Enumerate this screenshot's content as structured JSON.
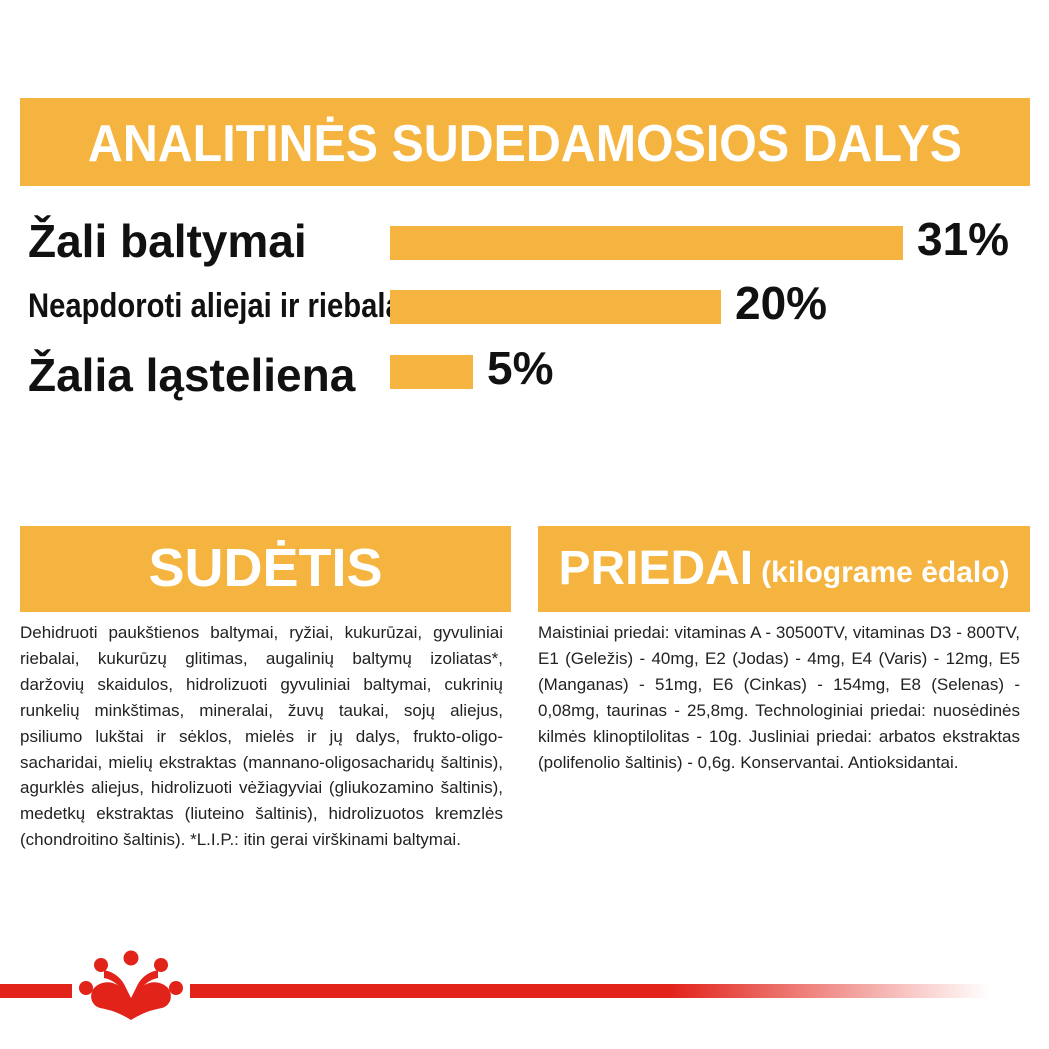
{
  "analytic": {
    "title": "ANALITINĖS SUDEDAMOSIOS DALYS"
  },
  "chart_data": {
    "type": "bar",
    "orientation": "horizontal",
    "categories": [
      "Žali baltymai",
      "Neapdoroti aliejai ir riebalai",
      "Žalia ląsteliena"
    ],
    "values": [
      31,
      20,
      5
    ],
    "value_labels": [
      "31%",
      "20%",
      "5%"
    ],
    "unit": "%",
    "xlim": [
      0,
      31
    ],
    "color": "#f5b43f",
    "grid": false
  },
  "sudetis": {
    "title": "SUDĖTIS",
    "text": "Dehidruoti paukštienos baltymai, ryžiai, kukurūzai, gyvuliniai riebalai, kukurūzų glitimas, augalinių baltymų izoliatas*, daržovių skaidulos, hidrolizuoti gyvuliniai baltymai, cukrinių runkelių minkštimas, mineralai, žuvų taukai, sojų aliejus, psiliumo lukštai ir sėklos, mielės ir jų dalys, frukto-oligo-sacharidai, mielių ekstraktas (mannano-oligosacharidų šaltinis), agurklės aliejus, hidrolizuoti vėžiagyviai (gliukozamino šaltinis), medetkų ekstraktas (liuteino šaltinis), hidrolizuotos kremzlės (chondroitino šaltinis). *L.I.P.: itin gerai virškinami baltymai."
  },
  "priedai": {
    "title": "PRIEDAI",
    "subtitle": "(kilograme ėdalo)",
    "text": "Maistiniai priedai: vitaminas A - 30500TV, vitaminas D3 - 800TV, E1 (Geležis) - 40mg, E2 (Jodas) - 4mg, E4 (Varis) - 12mg, E5 (Manganas) - 51mg, E6 (Cinkas) - 154mg, E8 (Selenas) - 0,08mg, taurinas - 25,8mg. Technologiniai priedai: nuosėdinės kilmės klinoptilolitas - 10g. Jusliniai priedai: arbatos ekstraktas (polifenolio šaltinis) - 0,6g. Konservantai. Antioksidantai."
  },
  "brand": {
    "logo_icon": "crown-icon",
    "accent_color": "#f5b43f",
    "brand_color": "#e2231a"
  }
}
